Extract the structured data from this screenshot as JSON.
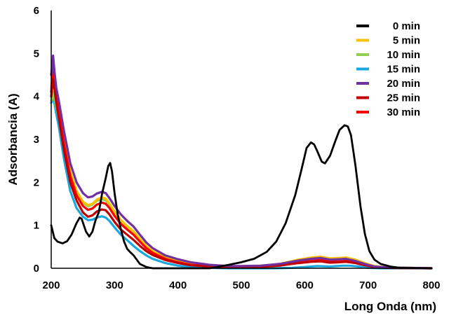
{
  "chart_data": {
    "type": "line",
    "xlabel": "Long Onda (nm)",
    "ylabel": "Adsorbancia (A)",
    "xlim": [
      200,
      800
    ],
    "ylim": [
      0,
      6
    ],
    "x_ticks": [
      "200",
      "300",
      "400",
      "500",
      "600",
      "700",
      "800"
    ],
    "y_ticks": [
      "0",
      "1",
      "2",
      "3",
      "4",
      "5",
      "6"
    ],
    "grid": false,
    "legend_position": "top-right",
    "series": [
      {
        "name": "0 min",
        "color": "#000000",
        "points": [
          [
            200,
            1.0
          ],
          [
            205,
            0.7
          ],
          [
            210,
            0.62
          ],
          [
            218,
            0.58
          ],
          [
            225,
            0.63
          ],
          [
            232,
            0.78
          ],
          [
            240,
            1.05
          ],
          [
            245,
            1.18
          ],
          [
            248,
            1.15
          ],
          [
            255,
            0.85
          ],
          [
            260,
            0.74
          ],
          [
            265,
            0.85
          ],
          [
            270,
            1.12
          ],
          [
            275,
            1.3
          ],
          [
            280,
            1.72
          ],
          [
            286,
            2.1
          ],
          [
            290,
            2.38
          ],
          [
            293,
            2.45
          ],
          [
            296,
            2.25
          ],
          [
            300,
            1.75
          ],
          [
            305,
            1.25
          ],
          [
            310,
            0.9
          ],
          [
            315,
            0.62
          ],
          [
            320,
            0.45
          ],
          [
            325,
            0.37
          ],
          [
            330,
            0.3
          ],
          [
            335,
            0.2
          ],
          [
            340,
            0.1
          ],
          [
            350,
            0.03
          ],
          [
            360,
            0.0
          ],
          [
            400,
            0.0
          ],
          [
            450,
            0.0
          ],
          [
            480,
            0.08
          ],
          [
            500,
            0.14
          ],
          [
            520,
            0.22
          ],
          [
            540,
            0.38
          ],
          [
            555,
            0.62
          ],
          [
            570,
            1.05
          ],
          [
            585,
            1.7
          ],
          [
            595,
            2.3
          ],
          [
            603,
            2.8
          ],
          [
            610,
            2.93
          ],
          [
            615,
            2.88
          ],
          [
            620,
            2.72
          ],
          [
            627,
            2.48
          ],
          [
            632,
            2.44
          ],
          [
            640,
            2.62
          ],
          [
            648,
            2.95
          ],
          [
            655,
            3.22
          ],
          [
            663,
            3.33
          ],
          [
            668,
            3.3
          ],
          [
            673,
            3.1
          ],
          [
            680,
            2.4
          ],
          [
            688,
            1.45
          ],
          [
            695,
            0.8
          ],
          [
            702,
            0.4
          ],
          [
            710,
            0.2
          ],
          [
            720,
            0.1
          ],
          [
            735,
            0.04
          ],
          [
            750,
            0.01
          ],
          [
            800,
            0.0
          ]
        ]
      },
      {
        "name": "5 min",
        "color": "#FFC000",
        "points": [
          [
            200,
            4.2
          ],
          [
            203,
            4.6
          ],
          [
            205,
            4.3
          ],
          [
            208,
            4.0
          ],
          [
            212,
            3.7
          ],
          [
            220,
            3.0
          ],
          [
            230,
            2.25
          ],
          [
            240,
            1.8
          ],
          [
            250,
            1.55
          ],
          [
            258,
            1.47
          ],
          [
            265,
            1.5
          ],
          [
            272,
            1.6
          ],
          [
            280,
            1.65
          ],
          [
            286,
            1.62
          ],
          [
            292,
            1.5
          ],
          [
            300,
            1.32
          ],
          [
            310,
            1.12
          ],
          [
            320,
            0.98
          ],
          [
            330,
            0.86
          ],
          [
            340,
            0.68
          ],
          [
            350,
            0.52
          ],
          [
            360,
            0.4
          ],
          [
            380,
            0.25
          ],
          [
            400,
            0.17
          ],
          [
            420,
            0.1
          ],
          [
            450,
            0.06
          ],
          [
            480,
            0.04
          ],
          [
            500,
            0.05
          ],
          [
            530,
            0.06
          ],
          [
            560,
            0.1
          ],
          [
            590,
            0.2
          ],
          [
            610,
            0.25
          ],
          [
            625,
            0.27
          ],
          [
            640,
            0.23
          ],
          [
            655,
            0.24
          ],
          [
            665,
            0.25
          ],
          [
            680,
            0.2
          ],
          [
            695,
            0.12
          ],
          [
            710,
            0.05
          ],
          [
            730,
            0.02
          ],
          [
            760,
            0.01
          ],
          [
            800,
            0.0
          ]
        ]
      },
      {
        "name": "10 min",
        "color": "#92D050",
        "points": [
          [
            200,
            3.9
          ],
          [
            203,
            4.1
          ],
          [
            205,
            3.95
          ],
          [
            208,
            3.75
          ],
          [
            212,
            3.5
          ],
          [
            220,
            2.85
          ],
          [
            230,
            2.15
          ],
          [
            240,
            1.75
          ],
          [
            250,
            1.52
          ],
          [
            258,
            1.44
          ],
          [
            265,
            1.48
          ],
          [
            272,
            1.57
          ],
          [
            280,
            1.61
          ],
          [
            286,
            1.58
          ],
          [
            292,
            1.47
          ],
          [
            300,
            1.28
          ],
          [
            310,
            1.08
          ],
          [
            320,
            0.95
          ],
          [
            330,
            0.83
          ],
          [
            340,
            0.65
          ],
          [
            350,
            0.5
          ],
          [
            360,
            0.38
          ],
          [
            380,
            0.24
          ],
          [
            400,
            0.16
          ],
          [
            420,
            0.1
          ],
          [
            450,
            0.06
          ],
          [
            480,
            0.04
          ],
          [
            500,
            0.04
          ],
          [
            530,
            0.05
          ],
          [
            560,
            0.08
          ],
          [
            590,
            0.17
          ],
          [
            610,
            0.22
          ],
          [
            625,
            0.24
          ],
          [
            640,
            0.2
          ],
          [
            655,
            0.21
          ],
          [
            665,
            0.22
          ],
          [
            680,
            0.18
          ],
          [
            695,
            0.1
          ],
          [
            710,
            0.04
          ],
          [
            730,
            0.02
          ],
          [
            760,
            0.01
          ],
          [
            800,
            0.0
          ]
        ]
      },
      {
        "name": "15 min",
        "color": "#1AA7E0",
        "points": [
          [
            200,
            3.85
          ],
          [
            203,
            3.95
          ],
          [
            205,
            3.85
          ],
          [
            208,
            3.6
          ],
          [
            212,
            3.3
          ],
          [
            220,
            2.55
          ],
          [
            230,
            1.8
          ],
          [
            240,
            1.4
          ],
          [
            250,
            1.2
          ],
          [
            258,
            1.12
          ],
          [
            265,
            1.13
          ],
          [
            272,
            1.18
          ],
          [
            280,
            1.21
          ],
          [
            286,
            1.18
          ],
          [
            292,
            1.1
          ],
          [
            300,
            0.95
          ],
          [
            310,
            0.78
          ],
          [
            320,
            0.65
          ],
          [
            330,
            0.52
          ],
          [
            340,
            0.4
          ],
          [
            350,
            0.3
          ],
          [
            360,
            0.22
          ],
          [
            380,
            0.12
          ],
          [
            400,
            0.06
          ],
          [
            420,
            0.03
          ],
          [
            450,
            0.01
          ],
          [
            480,
            0.0
          ],
          [
            550,
            0.0
          ],
          [
            580,
            0.01
          ],
          [
            600,
            0.03
          ],
          [
            620,
            0.05
          ],
          [
            640,
            0.04
          ],
          [
            660,
            0.06
          ],
          [
            670,
            0.06
          ],
          [
            685,
            0.04
          ],
          [
            700,
            0.01
          ],
          [
            720,
            0.0
          ],
          [
            800,
            0.0
          ]
        ]
      },
      {
        "name": "20 min",
        "color": "#7030A0",
        "points": [
          [
            200,
            4.5
          ],
          [
            203,
            4.95
          ],
          [
            205,
            4.6
          ],
          [
            208,
            4.2
          ],
          [
            212,
            3.9
          ],
          [
            220,
            3.2
          ],
          [
            230,
            2.45
          ],
          [
            240,
            2.0
          ],
          [
            250,
            1.75
          ],
          [
            258,
            1.65
          ],
          [
            265,
            1.67
          ],
          [
            272,
            1.74
          ],
          [
            280,
            1.78
          ],
          [
            286,
            1.75
          ],
          [
            292,
            1.63
          ],
          [
            300,
            1.45
          ],
          [
            310,
            1.25
          ],
          [
            320,
            1.1
          ],
          [
            330,
            0.97
          ],
          [
            340,
            0.78
          ],
          [
            350,
            0.6
          ],
          [
            360,
            0.47
          ],
          [
            380,
            0.3
          ],
          [
            400,
            0.21
          ],
          [
            420,
            0.14
          ],
          [
            450,
            0.08
          ],
          [
            480,
            0.05
          ],
          [
            500,
            0.05
          ],
          [
            530,
            0.06
          ],
          [
            560,
            0.1
          ],
          [
            590,
            0.18
          ],
          [
            610,
            0.22
          ],
          [
            625,
            0.24
          ],
          [
            640,
            0.2
          ],
          [
            655,
            0.21
          ],
          [
            665,
            0.22
          ],
          [
            680,
            0.17
          ],
          [
            695,
            0.1
          ],
          [
            710,
            0.04
          ],
          [
            730,
            0.02
          ],
          [
            760,
            0.01
          ],
          [
            800,
            0.0
          ]
        ]
      },
      {
        "name": "25 min",
        "color": "#C00000",
        "points": [
          [
            200,
            4.0
          ],
          [
            203,
            4.4
          ],
          [
            205,
            4.2
          ],
          [
            208,
            3.85
          ],
          [
            212,
            3.5
          ],
          [
            220,
            2.75
          ],
          [
            230,
            2.0
          ],
          [
            240,
            1.58
          ],
          [
            250,
            1.3
          ],
          [
            258,
            1.2
          ],
          [
            265,
            1.23
          ],
          [
            272,
            1.32
          ],
          [
            280,
            1.37
          ],
          [
            286,
            1.35
          ],
          [
            292,
            1.25
          ],
          [
            300,
            1.08
          ],
          [
            310,
            0.9
          ],
          [
            320,
            0.78
          ],
          [
            330,
            0.66
          ],
          [
            340,
            0.52
          ],
          [
            350,
            0.4
          ],
          [
            360,
            0.31
          ],
          [
            380,
            0.19
          ],
          [
            400,
            0.12
          ],
          [
            420,
            0.07
          ],
          [
            450,
            0.04
          ],
          [
            480,
            0.02
          ],
          [
            500,
            0.02
          ],
          [
            530,
            0.03
          ],
          [
            560,
            0.06
          ],
          [
            590,
            0.12
          ],
          [
            610,
            0.15
          ],
          [
            625,
            0.16
          ],
          [
            640,
            0.13
          ],
          [
            655,
            0.14
          ],
          [
            665,
            0.15
          ],
          [
            680,
            0.12
          ],
          [
            695,
            0.07
          ],
          [
            710,
            0.03
          ],
          [
            730,
            0.01
          ],
          [
            800,
            0.0
          ]
        ]
      },
      {
        "name": "30 min",
        "color": "#FF0000",
        "points": [
          [
            200,
            4.1
          ],
          [
            203,
            4.7
          ],
          [
            205,
            4.4
          ],
          [
            208,
            4.0
          ],
          [
            212,
            3.6
          ],
          [
            220,
            2.9
          ],
          [
            230,
            2.15
          ],
          [
            240,
            1.7
          ],
          [
            250,
            1.45
          ],
          [
            258,
            1.36
          ],
          [
            265,
            1.39
          ],
          [
            272,
            1.48
          ],
          [
            280,
            1.53
          ],
          [
            286,
            1.5
          ],
          [
            292,
            1.4
          ],
          [
            300,
            1.22
          ],
          [
            310,
            1.03
          ],
          [
            320,
            0.9
          ],
          [
            330,
            0.78
          ],
          [
            340,
            0.62
          ],
          [
            350,
            0.47
          ],
          [
            360,
            0.36
          ],
          [
            380,
            0.22
          ],
          [
            400,
            0.14
          ],
          [
            420,
            0.08
          ],
          [
            450,
            0.05
          ],
          [
            480,
            0.03
          ],
          [
            500,
            0.03
          ],
          [
            530,
            0.04
          ],
          [
            560,
            0.07
          ],
          [
            590,
            0.15
          ],
          [
            610,
            0.19
          ],
          [
            625,
            0.2
          ],
          [
            640,
            0.17
          ],
          [
            655,
            0.18
          ],
          [
            665,
            0.19
          ],
          [
            680,
            0.15
          ],
          [
            695,
            0.09
          ],
          [
            710,
            0.03
          ],
          [
            730,
            0.01
          ],
          [
            800,
            0.0
          ]
        ]
      }
    ]
  }
}
